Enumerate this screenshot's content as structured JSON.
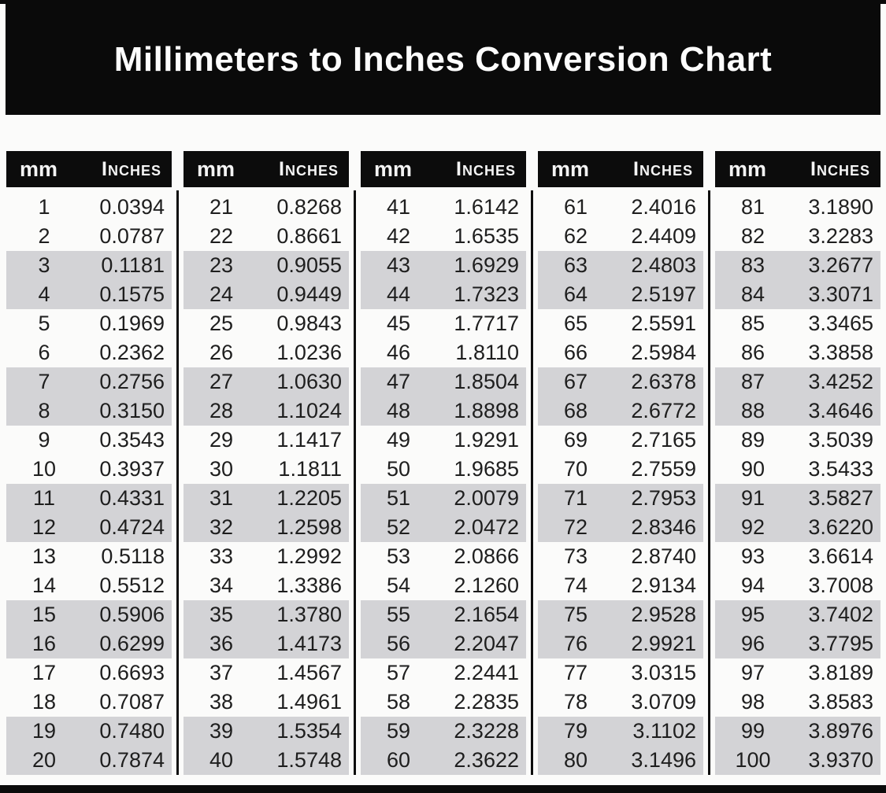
{
  "title": "Millimeters to Inches Conversion Chart",
  "column_headers": {
    "mm": "mm",
    "inches": "Inches"
  },
  "colors": {
    "banner_bg": "#0a0a0a",
    "table_header_bg": "#0c0c0c",
    "header_text": "#f4f4f4",
    "row_stripe": "#d3d3d6",
    "body_text": "#1e1e1e",
    "page_bg": "#fbfbfa",
    "rule": "#0a0a0a"
  },
  "chart_data": {
    "type": "table",
    "title": "Millimeters to Inches Conversion Chart",
    "columns": [
      "mm",
      "Inches"
    ],
    "stripe_pattern": "alternating pairs of rows shaded gray starting at rows 3-4",
    "column_groups": [
      {
        "rows": [
          [
            "1",
            "0.0394"
          ],
          [
            "2",
            "0.0787"
          ],
          [
            "3",
            "0.1181"
          ],
          [
            "4",
            "0.1575"
          ],
          [
            "5",
            "0.1969"
          ],
          [
            "6",
            "0.2362"
          ],
          [
            "7",
            "0.2756"
          ],
          [
            "8",
            "0.3150"
          ],
          [
            "9",
            "0.3543"
          ],
          [
            "10",
            "0.3937"
          ],
          [
            "11",
            "0.4331"
          ],
          [
            "12",
            "0.4724"
          ],
          [
            "13",
            "0.5118"
          ],
          [
            "14",
            "0.5512"
          ],
          [
            "15",
            "0.5906"
          ],
          [
            "16",
            "0.6299"
          ],
          [
            "17",
            "0.6693"
          ],
          [
            "18",
            "0.7087"
          ],
          [
            "19",
            "0.7480"
          ],
          [
            "20",
            "0.7874"
          ]
        ]
      },
      {
        "rows": [
          [
            "21",
            "0.8268"
          ],
          [
            "22",
            "0.8661"
          ],
          [
            "23",
            "0.9055"
          ],
          [
            "24",
            "0.9449"
          ],
          [
            "25",
            "0.9843"
          ],
          [
            "26",
            "1.0236"
          ],
          [
            "27",
            "1.0630"
          ],
          [
            "28",
            "1.1024"
          ],
          [
            "29",
            "1.1417"
          ],
          [
            "30",
            "1.1811"
          ],
          [
            "31",
            "1.2205"
          ],
          [
            "32",
            "1.2598"
          ],
          [
            "33",
            "1.2992"
          ],
          [
            "34",
            "1.3386"
          ],
          [
            "35",
            "1.3780"
          ],
          [
            "36",
            "1.4173"
          ],
          [
            "37",
            "1.4567"
          ],
          [
            "38",
            "1.4961"
          ],
          [
            "39",
            "1.5354"
          ],
          [
            "40",
            "1.5748"
          ]
        ]
      },
      {
        "rows": [
          [
            "41",
            "1.6142"
          ],
          [
            "42",
            "1.6535"
          ],
          [
            "43",
            "1.6929"
          ],
          [
            "44",
            "1.7323"
          ],
          [
            "45",
            "1.7717"
          ],
          [
            "46",
            "1.8110"
          ],
          [
            "47",
            "1.8504"
          ],
          [
            "48",
            "1.8898"
          ],
          [
            "49",
            "1.9291"
          ],
          [
            "50",
            "1.9685"
          ],
          [
            "51",
            "2.0079"
          ],
          [
            "52",
            "2.0472"
          ],
          [
            "53",
            "2.0866"
          ],
          [
            "54",
            "2.1260"
          ],
          [
            "55",
            "2.1654"
          ],
          [
            "56",
            "2.2047"
          ],
          [
            "57",
            "2.2441"
          ],
          [
            "58",
            "2.2835"
          ],
          [
            "59",
            "2.3228"
          ],
          [
            "60",
            "2.3622"
          ]
        ]
      },
      {
        "rows": [
          [
            "61",
            "2.4016"
          ],
          [
            "62",
            "2.4409"
          ],
          [
            "63",
            "2.4803"
          ],
          [
            "64",
            "2.5197"
          ],
          [
            "65",
            "2.5591"
          ],
          [
            "66",
            "2.5984"
          ],
          [
            "67",
            "2.6378"
          ],
          [
            "68",
            "2.6772"
          ],
          [
            "69",
            "2.7165"
          ],
          [
            "70",
            "2.7559"
          ],
          [
            "71",
            "2.7953"
          ],
          [
            "72",
            "2.8346"
          ],
          [
            "73",
            "2.8740"
          ],
          [
            "74",
            "2.9134"
          ],
          [
            "75",
            "2.9528"
          ],
          [
            "76",
            "2.9921"
          ],
          [
            "77",
            "3.0315"
          ],
          [
            "78",
            "3.0709"
          ],
          [
            "79",
            "3.1102"
          ],
          [
            "80",
            "3.1496"
          ]
        ]
      },
      {
        "rows": [
          [
            "81",
            "3.1890"
          ],
          [
            "82",
            "3.2283"
          ],
          [
            "83",
            "3.2677"
          ],
          [
            "84",
            "3.3071"
          ],
          [
            "85",
            "3.3465"
          ],
          [
            "86",
            "3.3858"
          ],
          [
            "87",
            "3.4252"
          ],
          [
            "88",
            "3.4646"
          ],
          [
            "89",
            "3.5039"
          ],
          [
            "90",
            "3.5433"
          ],
          [
            "91",
            "3.5827"
          ],
          [
            "92",
            "3.6220"
          ],
          [
            "93",
            "3.6614"
          ],
          [
            "94",
            "3.7008"
          ],
          [
            "95",
            "3.7402"
          ],
          [
            "96",
            "3.7795"
          ],
          [
            "97",
            "3.8189"
          ],
          [
            "98",
            "3.8583"
          ],
          [
            "99",
            "3.8976"
          ],
          [
            "100",
            "3.9370"
          ]
        ]
      }
    ]
  }
}
